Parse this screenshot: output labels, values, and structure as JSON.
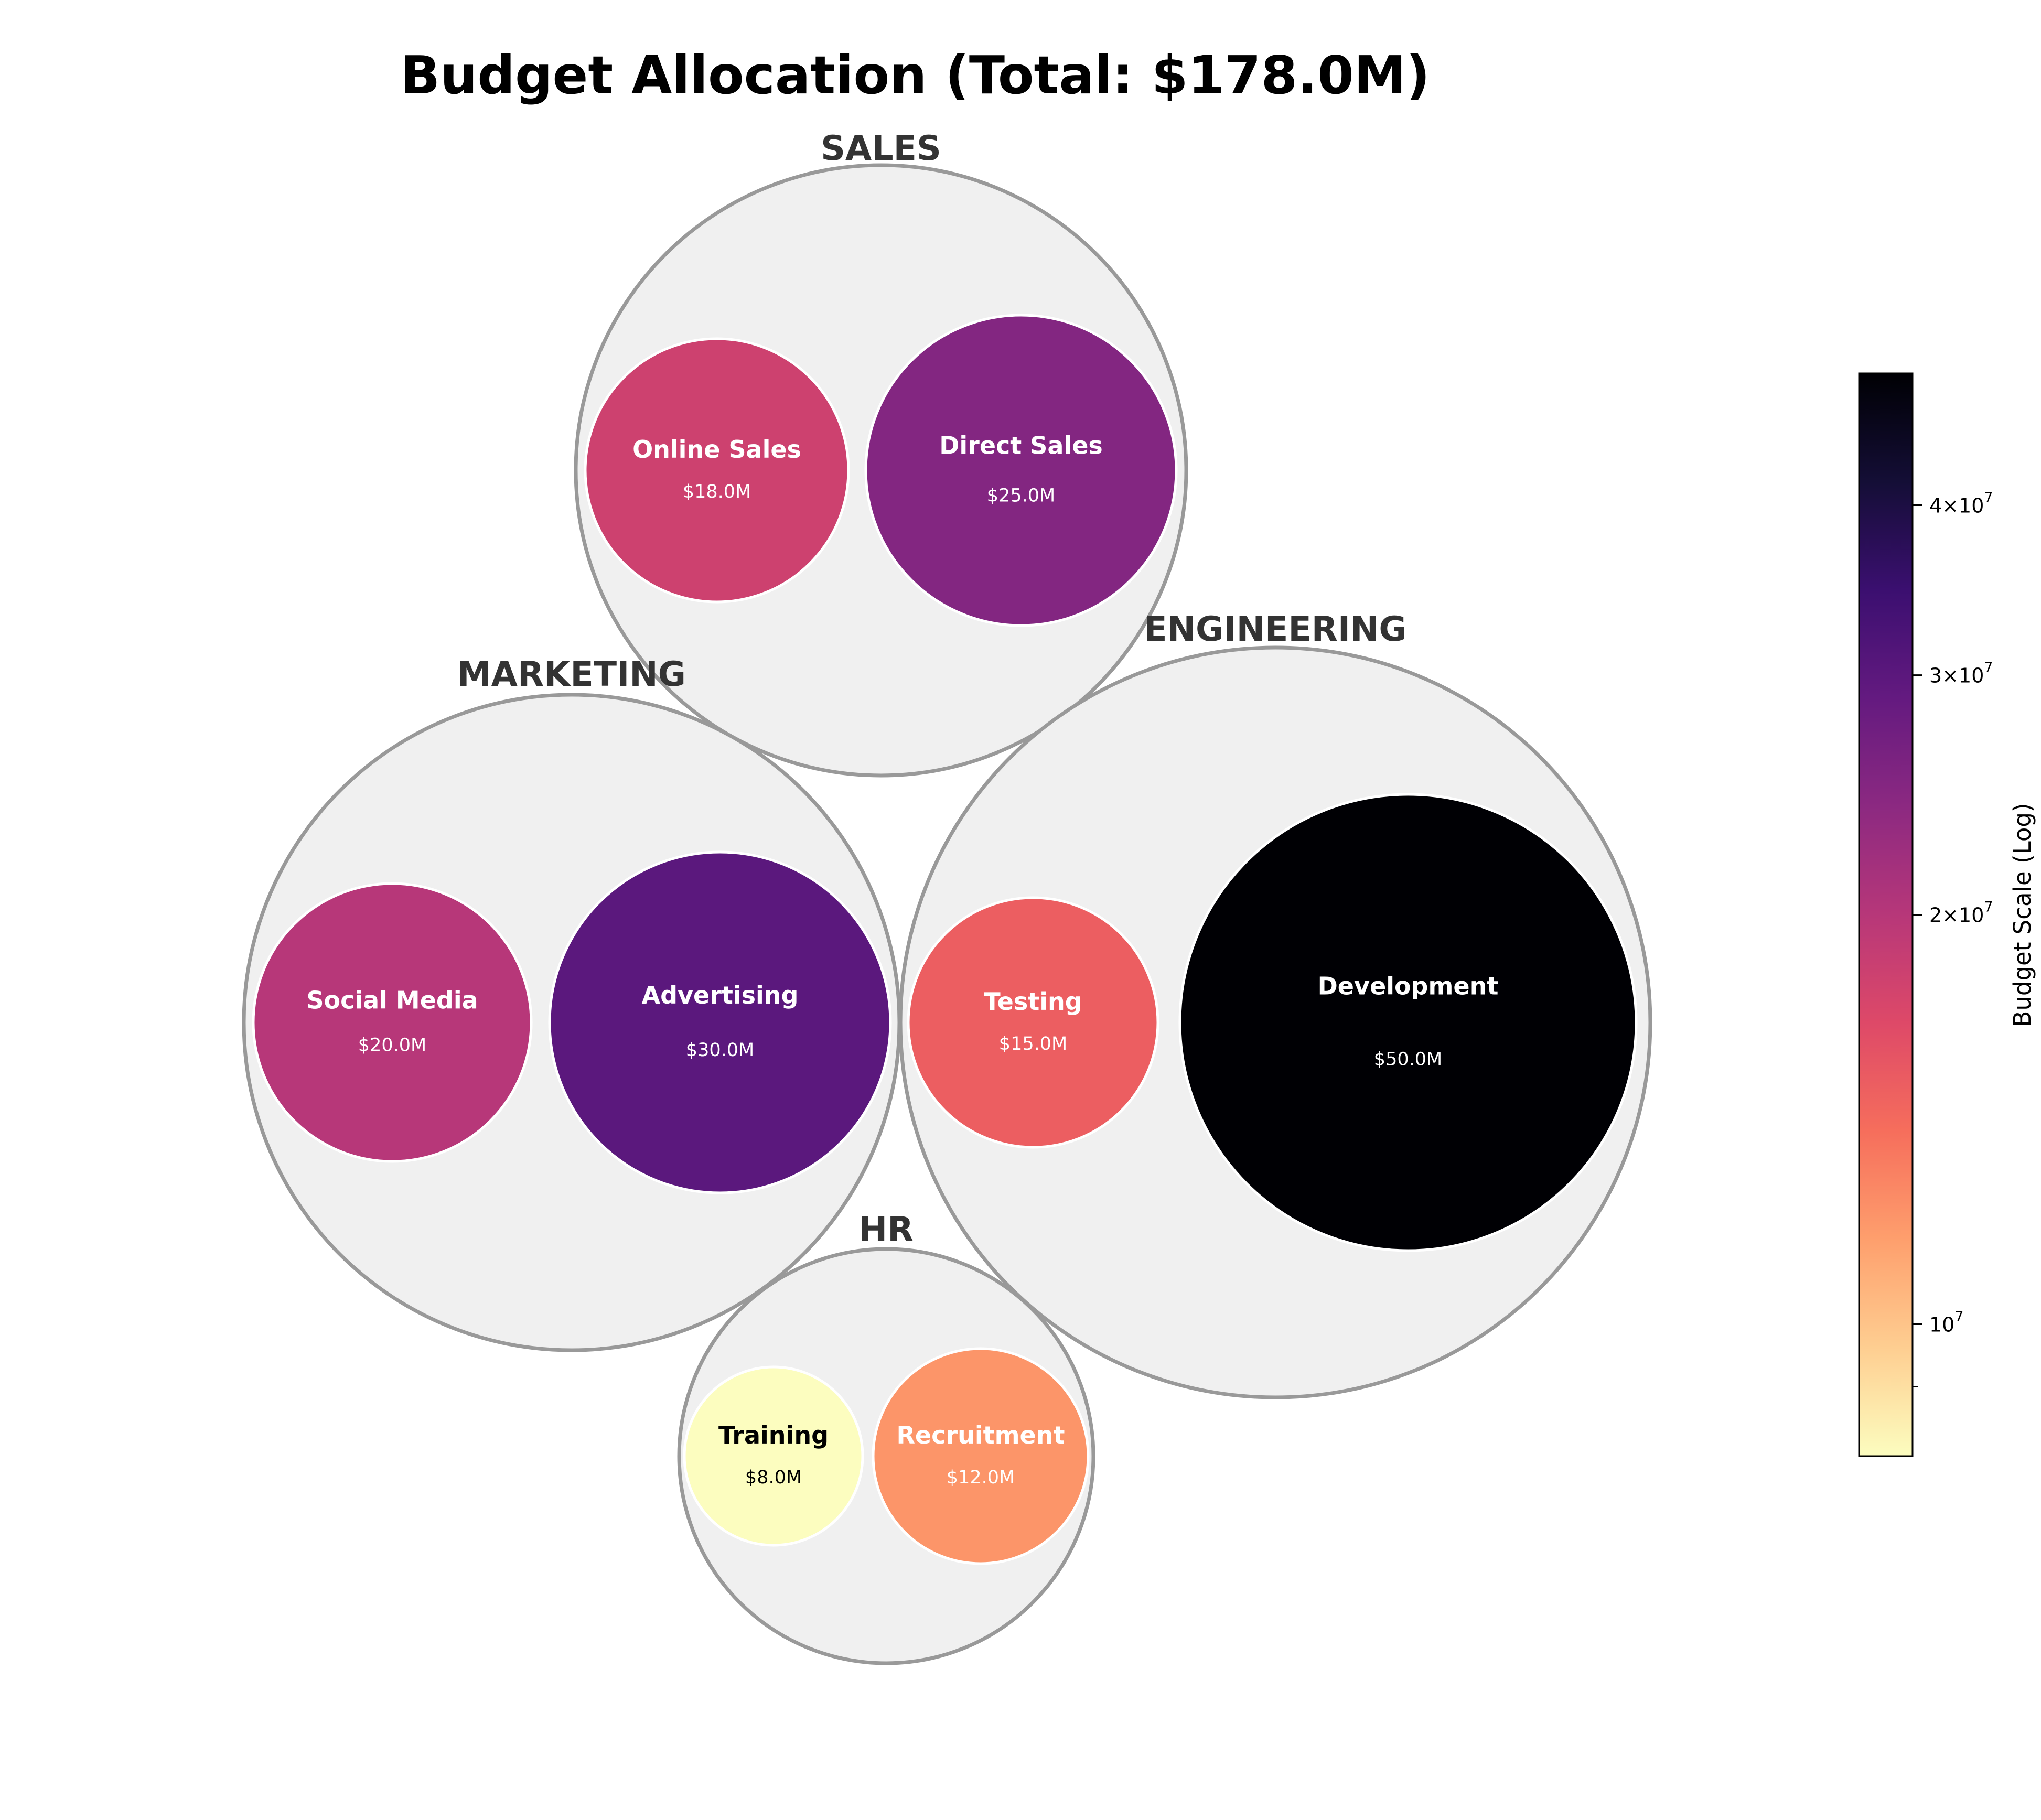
{
  "chart_data": {
    "type": "bubble",
    "title": "Budget Allocation (Total: $178.0M)",
    "groups": [
      {
        "name": "SALES",
        "items": [
          {
            "name": "Online Sales",
            "label": "$18.0M",
            "value": 18000000
          },
          {
            "name": "Direct Sales",
            "label": "$25.0M",
            "value": 25000000
          }
        ]
      },
      {
        "name": "MARKETING",
        "items": [
          {
            "name": "Social Media",
            "label": "$20.0M",
            "value": 20000000
          },
          {
            "name": "Advertising",
            "label": "$30.0M",
            "value": 30000000
          }
        ]
      },
      {
        "name": "ENGINEERING",
        "items": [
          {
            "name": "Testing",
            "label": "$15.0M",
            "value": 15000000
          },
          {
            "name": "Development",
            "label": "$50.0M",
            "value": 50000000
          }
        ]
      },
      {
        "name": "HR",
        "items": [
          {
            "name": "Training",
            "label": "$8.0M",
            "value": 8000000
          },
          {
            "name": "Recruitment",
            "label": "$12.0M",
            "value": 12000000
          }
        ]
      }
    ],
    "colorbar": {
      "label": "Budget Scale (Log)",
      "scale": "log",
      "colormap": "magma_r",
      "range": [
        8000000,
        50000000
      ],
      "ticks": [
        {
          "value": 10000000,
          "mantissa": "",
          "exponent": "7"
        },
        {
          "value": 20000000,
          "mantissa": "2",
          "exponent": "7"
        },
        {
          "value": 30000000,
          "mantissa": "3",
          "exponent": "7"
        },
        {
          "value": 40000000,
          "mantissa": "4",
          "exponent": "7"
        }
      ],
      "minor_ticks": [
        9000000
      ]
    }
  }
}
